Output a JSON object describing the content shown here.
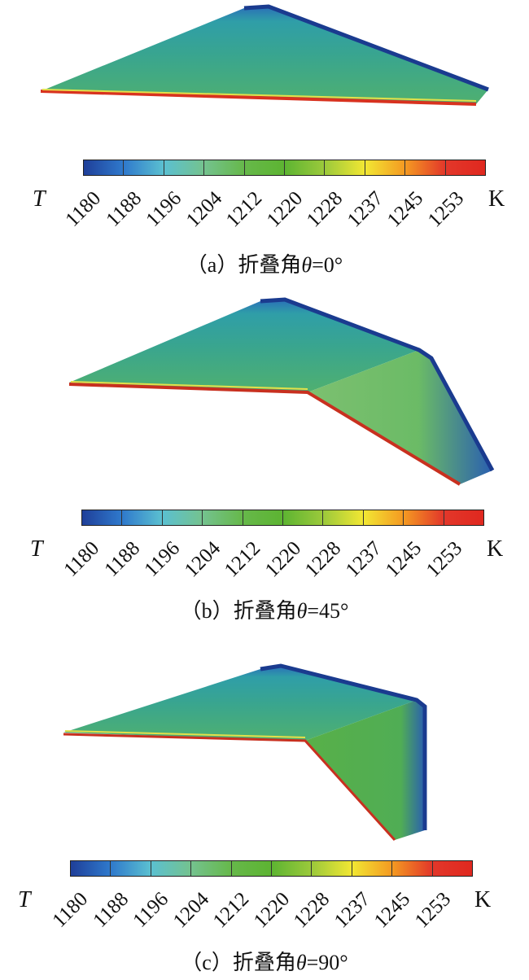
{
  "colorbar": {
    "symbol": "T",
    "unit": "K",
    "ticks": [
      "1180",
      "1188",
      "1196",
      "1204",
      "1212",
      "1220",
      "1228",
      "1237",
      "1245",
      "1253"
    ],
    "colors": [
      "#1f3f99",
      "#2f79cc",
      "#5bc0d0",
      "#74c28f",
      "#66b84a",
      "#5db432",
      "#9bc93b",
      "#f2e733",
      "#f49a22",
      "#e2372a",
      "#e0281f"
    ]
  },
  "panels": [
    {
      "label": "（a）折叠角",
      "theta": "θ",
      "value": "=0°"
    },
    {
      "label": "（b）折叠角",
      "theta": "θ",
      "value": "=45°"
    },
    {
      "label": "（c）折叠角",
      "theta": "θ",
      "value": "=90°"
    }
  ]
}
